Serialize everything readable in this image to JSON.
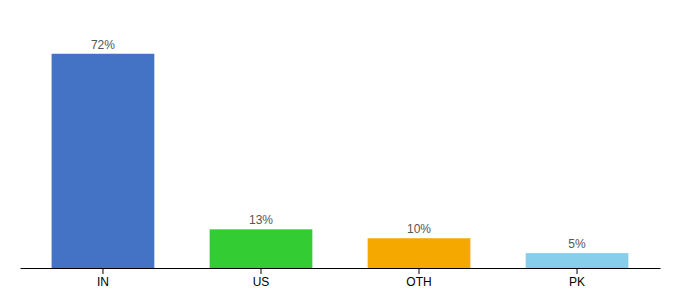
{
  "chart_data": {
    "type": "bar",
    "categories": [
      "IN",
      "US",
      "OTH",
      "PK"
    ],
    "values": [
      72,
      13,
      10,
      5
    ],
    "value_labels": [
      "72%",
      "13%",
      "10%",
      "5%"
    ],
    "data_labels": true,
    "colors": [
      "#4472c4",
      "#33cc33",
      "#f5a800",
      "#87ceeb"
    ],
    "ylim": [
      0,
      82
    ],
    "tick_labels": "x",
    "grid": false
  }
}
